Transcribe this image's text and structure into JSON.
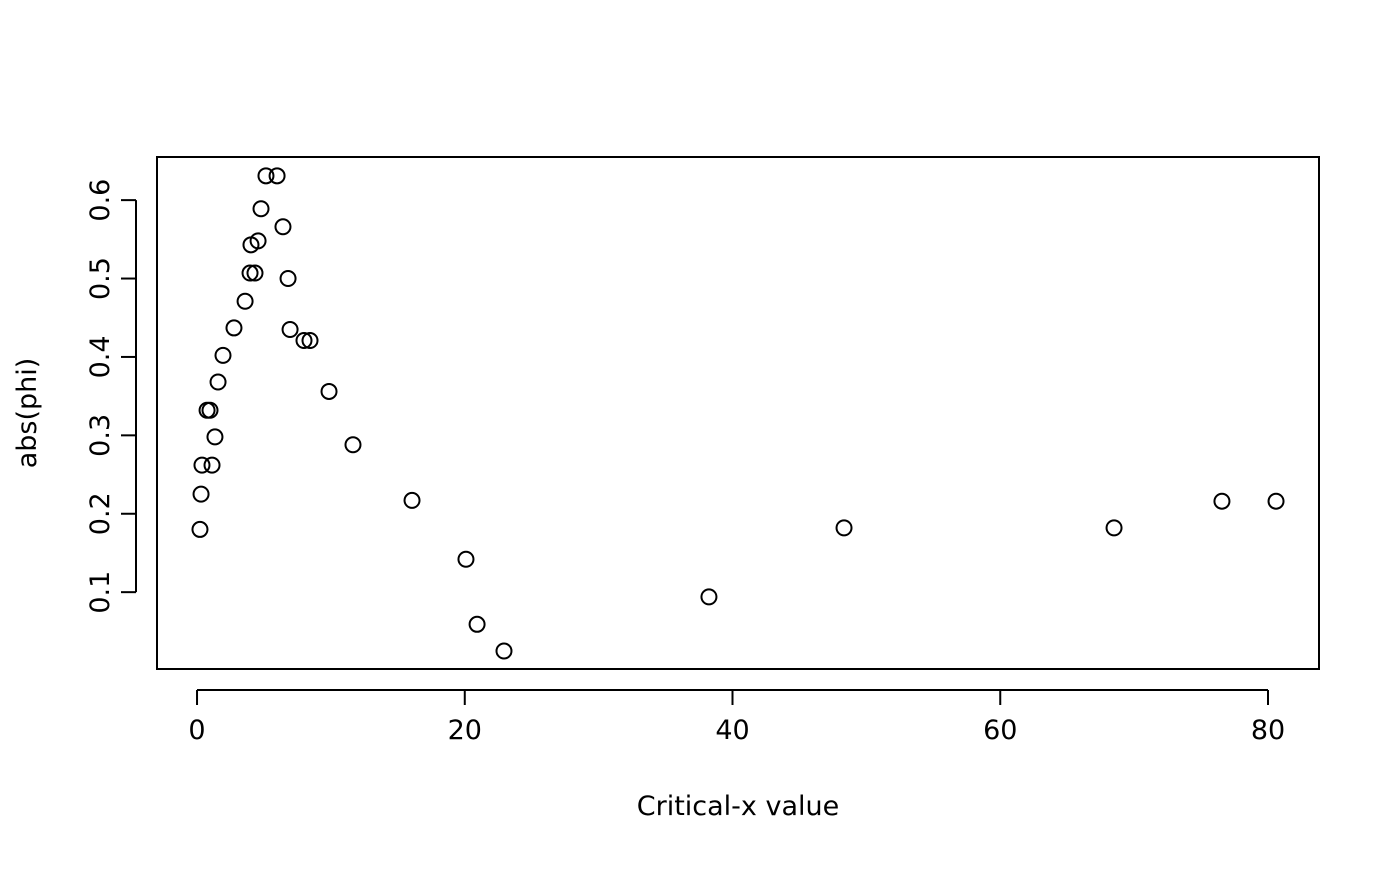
{
  "chart_data": {
    "type": "scatter",
    "xlabel": "Critical-x value",
    "ylabel": "abs(phi)",
    "x": [
      0.22,
      0.3,
      0.37,
      0.75,
      0.97,
      1.12,
      1.34,
      1.57,
      1.94,
      2.76,
      3.59,
      3.96,
      4.03,
      4.33,
      4.56,
      4.78,
      5.15,
      5.98,
      6.42,
      6.8,
      6.95,
      7.99,
      8.44,
      9.86,
      11.65,
      16.06,
      20.09,
      20.92,
      22.93,
      38.24,
      48.33,
      68.5,
      76.56,
      80.6
    ],
    "values": [
      0.18,
      0.225,
      0.262,
      0.332,
      0.332,
      0.262,
      0.298,
      0.368,
      0.402,
      0.437,
      0.471,
      0.507,
      0.543,
      0.507,
      0.548,
      0.589,
      0.631,
      0.631,
      0.566,
      0.5,
      0.435,
      0.421,
      0.421,
      0.356,
      0.288,
      0.217,
      0.142,
      0.059,
      0.025,
      0.094,
      0.182,
      0.182,
      0.216,
      0.216
    ],
    "color": "#000000",
    "xlim": [
      -2.99,
      83.81
    ],
    "ylim": [
      0.002,
      0.655
    ],
    "xticks": [
      0,
      20,
      40,
      60,
      80
    ],
    "yticks": [
      0.1,
      0.2,
      0.3,
      0.4,
      0.5,
      0.6
    ]
  }
}
